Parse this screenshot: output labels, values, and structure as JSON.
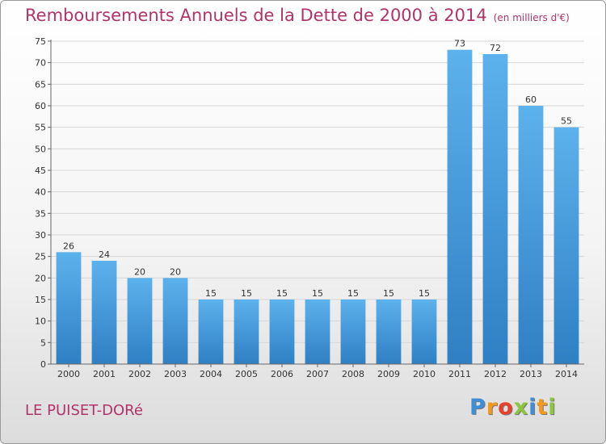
{
  "page": {
    "title": "Remboursements Annuels de la Dette de 2000 à 2014",
    "unit": "(en milliers d'€)",
    "city": "LE PUISET-DORé",
    "logo": {
      "letters": [
        "P",
        "r",
        "o",
        "x",
        "i",
        "t",
        "i"
      ],
      "colors": [
        "#3c8fd6",
        "#f39a1c",
        "#e8402a",
        "#8cc63e",
        "#3c8fd6",
        "#f39a1c",
        "#8cc63e"
      ]
    }
  },
  "chart_data": {
    "type": "bar",
    "title": "Remboursements Annuels de la Dette de 2000 à 2014",
    "subtitle": "(en milliers d'€)",
    "xlabel": "",
    "ylabel": "",
    "ylim": [
      0,
      75
    ],
    "yticks": [
      0,
      5,
      10,
      15,
      20,
      25,
      30,
      35,
      40,
      45,
      50,
      55,
      60,
      65,
      70,
      75
    ],
    "grid": true,
    "categories": [
      "2000",
      "2001",
      "2002",
      "2003",
      "2004",
      "2005",
      "2006",
      "2007",
      "2008",
      "2009",
      "2010",
      "2011",
      "2012",
      "2013",
      "2014"
    ],
    "values": [
      26,
      24,
      20,
      20,
      15,
      15,
      15,
      15,
      15,
      15,
      15,
      73,
      72,
      60,
      55
    ],
    "bar_color": "#4fa3e0"
  }
}
